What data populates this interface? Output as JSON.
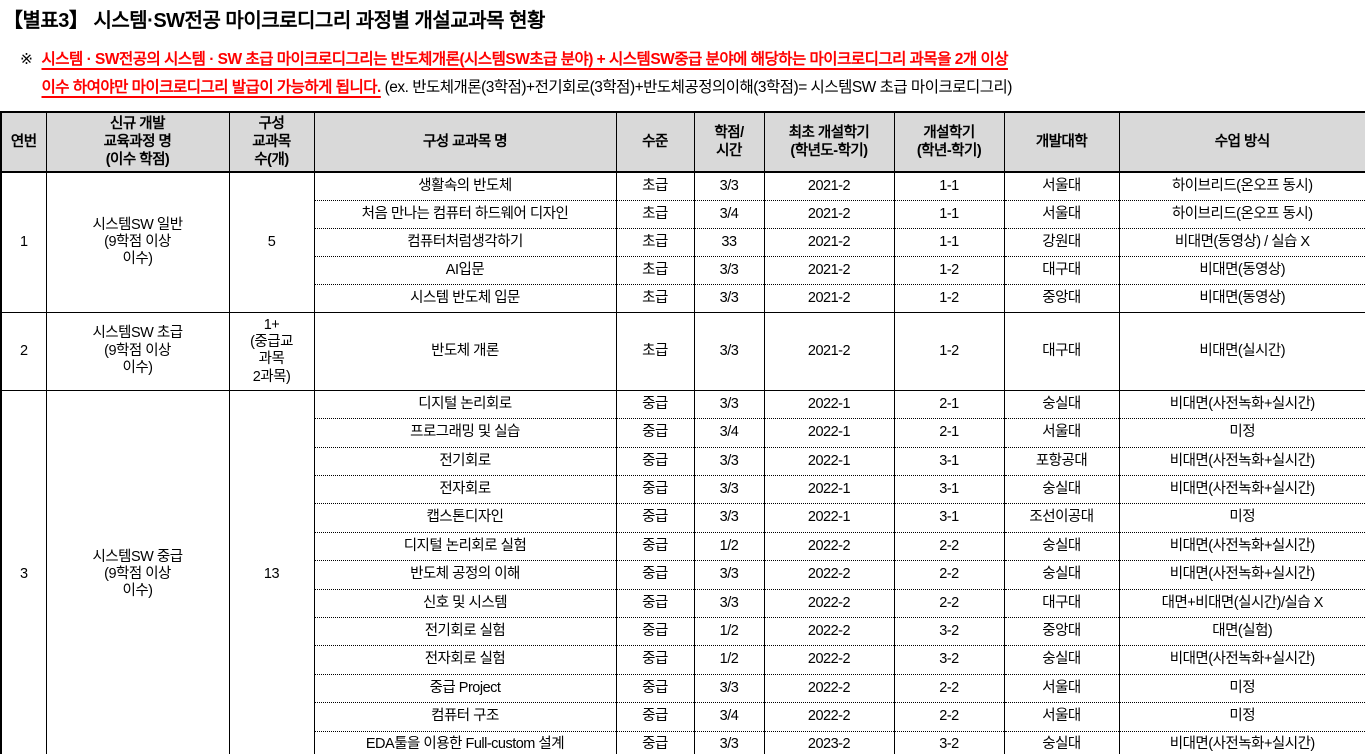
{
  "title": "【별표3】 시스템·SW전공 마이크로디그리 과정별 개설교과목 현황",
  "note": {
    "marker": "※",
    "line1": "시스템 · SW전공의 시스템 · SW 초급 마이크로디그리는 반도체개론(시스템SW초급 분야) + 시스템SW중급 분야에 해당하는 마이크로디그리 과목을 2개 이상",
    "line2_red": "이수 하여야만 마이크로디그리 발급이 가능하게 됩니다.",
    "line2_black": " (ex. 반도체개론(3학점)+전기회로(3학점)+반도체공정의이해(3학점)= 시스템SW 초급 마이크로디그리)"
  },
  "table": {
    "headers": [
      "연번",
      "신규 개발\n교육과정 명\n(이수 학점)",
      "구성\n교과목\n수(개)",
      "구성 교과목 명",
      "수준",
      "학점/\n시간",
      "최초 개설학기\n(학년도-학기)",
      "개설학기\n(학년-학기)",
      "개발대학",
      "수업 방식"
    ],
    "groups": [
      {
        "no": "1",
        "name": "시스템SW 일반\n(9학점 이상\n이수)",
        "count": "5",
        "rows": [
          [
            "생활속의 반도체",
            "초급",
            "3/3",
            "2021-2",
            "1-1",
            "서울대",
            "하이브리드(온오프 동시)"
          ],
          [
            "처음 만나는 컴퓨터 하드웨어 디자인",
            "초급",
            "3/4",
            "2021-2",
            "1-1",
            "서울대",
            "하이브리드(온오프 동시)"
          ],
          [
            "컴퓨터처럼생각하기",
            "초급",
            "33",
            "2021-2",
            "1-1",
            "강원대",
            "비대면(동영상) / 실습 X"
          ],
          [
            "AI입문",
            "초급",
            "3/3",
            "2021-2",
            "1-2",
            "대구대",
            "비대면(동영상)"
          ],
          [
            "시스템 반도체 입문",
            "초급",
            "3/3",
            "2021-2",
            "1-2",
            "중앙대",
            "비대면(동영상)"
          ]
        ]
      },
      {
        "no": "2",
        "name": "시스템SW 초급\n(9학점 이상\n이수)",
        "count": "1+\n(중급교\n과목\n2과목)",
        "rows": [
          [
            "반도체 개론",
            "초급",
            "3/3",
            "2021-2",
            "1-2",
            "대구대",
            "비대면(실시간)"
          ]
        ]
      },
      {
        "no": "3",
        "name": "시스템SW 중급\n(9학점 이상\n이수)",
        "count": "13",
        "rows": [
          [
            "디지털 논리회로",
            "중급",
            "3/3",
            "2022-1",
            "2-1",
            "숭실대",
            "비대면(사전녹화+실시간)"
          ],
          [
            "프로그래밍 및 실습",
            "중급",
            "3/4",
            "2022-1",
            "2-1",
            "서울대",
            "미정"
          ],
          [
            "전기회로",
            "중급",
            "3/3",
            "2022-1",
            "3-1",
            "포항공대",
            "비대면(사전녹화+실시간)"
          ],
          [
            "전자회로",
            "중급",
            "3/3",
            "2022-1",
            "3-1",
            "숭실대",
            "비대면(사전녹화+실시간)"
          ],
          [
            "캡스톤디자인",
            "중급",
            "3/3",
            "2022-1",
            "3-1",
            "조선이공대",
            "미정"
          ],
          [
            "디지털 논리회로 실험",
            "중급",
            "1/2",
            "2022-2",
            "2-2",
            "숭실대",
            "비대면(사전녹화+실시간)"
          ],
          [
            "반도체 공정의 이해",
            "중급",
            "3/3",
            "2022-2",
            "2-2",
            "숭실대",
            "비대면(사전녹화+실시간)"
          ],
          [
            "신호 및 시스템",
            "중급",
            "3/3",
            "2022-2",
            "2-2",
            "대구대",
            "대면+비대면(실시간)/실습 X"
          ],
          [
            "전기회로 실험",
            "중급",
            "1/2",
            "2022-2",
            "3-2",
            "중앙대",
            "대면(실험)"
          ],
          [
            "전자회로 실험",
            "중급",
            "1/2",
            "2022-2",
            "3-2",
            "숭실대",
            "비대면(사전녹화+실시간)"
          ],
          [
            "중급 Project",
            "중급",
            "3/3",
            "2022-2",
            "2-2",
            "서울대",
            "미정"
          ],
          [
            "컴퓨터 구조",
            "중급",
            "3/4",
            "2022-2",
            "2-2",
            "서울대",
            "미정"
          ],
          [
            "EDA툴을 이용한 Full-custom 설계",
            "중급",
            "3/3",
            "2023-2",
            "3-2",
            "숭실대",
            "비대면(사전녹화+실시간)"
          ]
        ]
      }
    ],
    "cell_names": [
      "course-name",
      "level",
      "credit-hours",
      "first-open-term",
      "open-term",
      "university",
      "class-method"
    ]
  },
  "colors": {
    "header_bg": "#d9d9d9",
    "note_red": "#ff0000",
    "text": "#000000",
    "border": "#000000"
  }
}
